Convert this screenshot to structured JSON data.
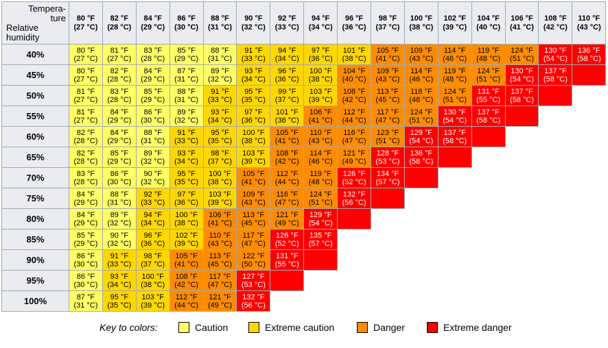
{
  "header": {
    "corner_top": "Tempera-\nture",
    "corner_bottom": "Relative\nhumidity",
    "temps": [
      [
        "80 °F",
        "(27 °C)"
      ],
      [
        "82 °F",
        "(28 °C)"
      ],
      [
        "84 °F",
        "(29 °C)"
      ],
      [
        "86 °F",
        "(30 °C)"
      ],
      [
        "88 °F",
        "(31 °C)"
      ],
      [
        "90 °F",
        "(32 °C)"
      ],
      [
        "92 °F",
        "(33 °C)"
      ],
      [
        "94 °F",
        "(34 °C)"
      ],
      [
        "96 °F",
        "(36 °C)"
      ],
      [
        "98 °F",
        "(37 °C)"
      ],
      [
        "100 °F",
        "(38 °C)"
      ],
      [
        "102 °F",
        "(39 °C)"
      ],
      [
        "104 °F",
        "(40 °C)"
      ],
      [
        "106 °F",
        "(41 °C)"
      ],
      [
        "108 °F",
        "(42 °C)"
      ],
      [
        "110 °F",
        "(43 °C)"
      ]
    ]
  },
  "colors": {
    "caution": "#ffff66",
    "extreme_caution": "#ffd700",
    "danger": "#ff8c00",
    "extreme_danger": "#ff0000",
    "header_bg": "#eaecf0",
    "border": "#a2a9b1"
  },
  "rows": [
    {
      "humidity": "40%",
      "cells": [
        [
          "80 °F",
          "(27 °C)",
          "c"
        ],
        [
          "81 °F",
          "(27 °C)",
          "c"
        ],
        [
          "83 °F",
          "(28 °C)",
          "c"
        ],
        [
          "85 °F",
          "(29 °C)",
          "c"
        ],
        [
          "88 °F",
          "(31 °C)",
          "c"
        ],
        [
          "91 °F",
          "(33 °C)",
          "e"
        ],
        [
          "94 °F",
          "(34 °C)",
          "e"
        ],
        [
          "97 °F",
          "(36 °C)",
          "e"
        ],
        [
          "101 °F",
          "(38 °C)",
          "e"
        ],
        [
          "105 °F",
          "(41 °C)",
          "d"
        ],
        [
          "109 °F",
          "(43 °C)",
          "d"
        ],
        [
          "114 °F",
          "(46 °C)",
          "d"
        ],
        [
          "119 °F",
          "(48 °C)",
          "d"
        ],
        [
          "124 °F",
          "(51 °C)",
          "d"
        ],
        [
          "130 °F",
          "(54 °C)",
          "x"
        ],
        [
          "136 °F",
          "(58 °C)",
          "x"
        ]
      ]
    },
    {
      "humidity": "45%",
      "cells": [
        [
          "80 °F",
          "(27 °C)",
          "c"
        ],
        [
          "82 °F",
          "(28 °C)",
          "c"
        ],
        [
          "84 °F",
          "(29 °C)",
          "c"
        ],
        [
          "87 °F",
          "(31 °C)",
          "c"
        ],
        [
          "89 °F",
          "(32 °C)",
          "c"
        ],
        [
          "93 °F",
          "(34 °C)",
          "e"
        ],
        [
          "96 °F",
          "(36 °C)",
          "e"
        ],
        [
          "100 °F",
          "(38 °C)",
          "e"
        ],
        [
          "104 °F",
          "(40 °C)",
          "d"
        ],
        [
          "109 °F",
          "(43 °C)",
          "d"
        ],
        [
          "114 °F",
          "(46 °C)",
          "d"
        ],
        [
          "119 °F",
          "(48 °C)",
          "d"
        ],
        [
          "124 °F",
          "(51 °C)",
          "d"
        ],
        [
          "130 °F",
          "(54 °C)",
          "x"
        ],
        [
          "137 °F",
          "(58 °C)",
          "x"
        ],
        [
          "",
          "",
          "x"
        ]
      ]
    },
    {
      "humidity": "50%",
      "cells": [
        [
          "81 °F",
          "(27 °C)",
          "c"
        ],
        [
          "83 °F",
          "(28 °C)",
          "c"
        ],
        [
          "85 °F",
          "(29 °C)",
          "c"
        ],
        [
          "88 °F",
          "(31 °C)",
          "c"
        ],
        [
          "91 °F",
          "(33 °C)",
          "e"
        ],
        [
          "95 °F",
          "(35 °C)",
          "e"
        ],
        [
          "99 °F",
          "(37 °C)",
          "e"
        ],
        [
          "103 °F",
          "(39 °C)",
          "e"
        ],
        [
          "108 °F",
          "(42 °C)",
          "d"
        ],
        [
          "113 °F",
          "(45 °C)",
          "d"
        ],
        [
          "118 °F",
          "(48 °C)",
          "d"
        ],
        [
          "124 °F",
          "(51 °C)",
          "d"
        ],
        [
          "131 °F",
          "(55 °C)",
          "x"
        ],
        [
          "137 °F",
          "(58 °C)",
          "x"
        ],
        [
          "",
          "",
          "x"
        ],
        [
          "",
          "",
          ""
        ]
      ]
    },
    {
      "humidity": "55%",
      "cells": [
        [
          "81 °F",
          "(27 °C)",
          "c"
        ],
        [
          "84 °F",
          "(29 °C)",
          "c"
        ],
        [
          "86 °F",
          "(30 °C)",
          "c"
        ],
        [
          "89 °F",
          "(32 °C)",
          "c"
        ],
        [
          "93 °F",
          "(34 °C)",
          "e"
        ],
        [
          "97 °F",
          "(36 °C)",
          "e"
        ],
        [
          "101 °F",
          "(38 °C)",
          "e"
        ],
        [
          "106 °F",
          "(41 °C)",
          "d"
        ],
        [
          "112 °F",
          "(44 °C)",
          "d"
        ],
        [
          "117 °F",
          "(47 °C)",
          "d"
        ],
        [
          "124 °F",
          "(51 °C)",
          "d"
        ],
        [
          "130 °F",
          "(54 °C)",
          "x"
        ],
        [
          "137 °F",
          "(58 °C)",
          "x"
        ],
        [
          "",
          "",
          "x"
        ],
        [
          "",
          "",
          ""
        ],
        [
          "",
          "",
          ""
        ]
      ]
    },
    {
      "humidity": "60%",
      "cells": [
        [
          "82 °F",
          "(28 °C)",
          "c"
        ],
        [
          "84 °F",
          "(29 °C)",
          "c"
        ],
        [
          "88 °F",
          "(31 °C)",
          "c"
        ],
        [
          "91 °F",
          "(33 °C)",
          "e"
        ],
        [
          "95 °F",
          "(35 °C)",
          "e"
        ],
        [
          "100 °F",
          "(38 °C)",
          "e"
        ],
        [
          "105 °F",
          "(41 °C)",
          "d"
        ],
        [
          "110 °F",
          "(43 °C)",
          "d"
        ],
        [
          "116 °F",
          "(47 °C)",
          "d"
        ],
        [
          "123 °F",
          "(51 °C)",
          "d"
        ],
        [
          "129 °F",
          "(54 °C)",
          "x"
        ],
        [
          "137 °F",
          "(58 °C)",
          "x"
        ],
        [
          "",
          "",
          "x"
        ],
        [
          "",
          "",
          ""
        ],
        [
          "",
          "",
          ""
        ],
        [
          "",
          "",
          ""
        ]
      ]
    },
    {
      "humidity": "65%",
      "cells": [
        [
          "82 °F",
          "(28 °C)",
          "c"
        ],
        [
          "85 °F",
          "(29 °C)",
          "c"
        ],
        [
          "89 °F",
          "(32 °C)",
          "c"
        ],
        [
          "93 °F",
          "(34 °C)",
          "e"
        ],
        [
          "98 °F",
          "(37 °C)",
          "e"
        ],
        [
          "103 °F",
          "(39 °C)",
          "e"
        ],
        [
          "108 °F",
          "(42 °C)",
          "d"
        ],
        [
          "114 °F",
          "(46 °C)",
          "d"
        ],
        [
          "121 °F",
          "(49 °C)",
          "d"
        ],
        [
          "128 °F",
          "(53 °C)",
          "x"
        ],
        [
          "136 °F",
          "(58 °C)",
          "x"
        ],
        [
          "",
          "",
          "x"
        ],
        [
          "",
          "",
          ""
        ],
        [
          "",
          "",
          ""
        ],
        [
          "",
          "",
          ""
        ],
        [
          "",
          "",
          ""
        ]
      ]
    },
    {
      "humidity": "70%",
      "cells": [
        [
          "83 °F",
          "(28 °C)",
          "c"
        ],
        [
          "86 °F",
          "(30 °C)",
          "c"
        ],
        [
          "90 °F",
          "(32 °C)",
          "c"
        ],
        [
          "95 °F",
          "(35 °C)",
          "e"
        ],
        [
          "100 °F",
          "(38 °C)",
          "e"
        ],
        [
          "105 °F",
          "(41 °C)",
          "d"
        ],
        [
          "112 °F",
          "(44 °C)",
          "d"
        ],
        [
          "119 °F",
          "(48 °C)",
          "d"
        ],
        [
          "126 °F",
          "(52 °C)",
          "x"
        ],
        [
          "134 °F",
          "(57 °C)",
          "x"
        ],
        [
          "",
          "",
          "x"
        ],
        [
          "",
          "",
          ""
        ],
        [
          "",
          "",
          ""
        ],
        [
          "",
          "",
          ""
        ],
        [
          "",
          "",
          ""
        ],
        [
          "",
          "",
          ""
        ]
      ]
    },
    {
      "humidity": "75%",
      "cells": [
        [
          "84 °F",
          "(29 °C)",
          "c"
        ],
        [
          "88 °F",
          "(31 °C)",
          "c"
        ],
        [
          "92 °F",
          "(33 °C)",
          "e"
        ],
        [
          "97 °F",
          "(36 °C)",
          "e"
        ],
        [
          "103 °F",
          "(39 °C)",
          "e"
        ],
        [
          "109 °F",
          "(43 °C)",
          "d"
        ],
        [
          "116 °F",
          "(47 °C)",
          "d"
        ],
        [
          "124 °F",
          "(51 °C)",
          "d"
        ],
        [
          "132 °F",
          "(56 °C)",
          "x"
        ],
        [
          "",
          "",
          "x"
        ],
        [
          "",
          "",
          ""
        ],
        [
          "",
          "",
          ""
        ],
        [
          "",
          "",
          ""
        ],
        [
          "",
          "",
          ""
        ],
        [
          "",
          "",
          ""
        ],
        [
          "",
          "",
          ""
        ]
      ]
    },
    {
      "humidity": "80%",
      "cells": [
        [
          "84 °F",
          "(29 °C)",
          "c"
        ],
        [
          "89 °F",
          "(32 °C)",
          "c"
        ],
        [
          "94 °F",
          "(34 °C)",
          "e"
        ],
        [
          "100 °F",
          "(38 °C)",
          "e"
        ],
        [
          "106 °F",
          "(41 °C)",
          "d"
        ],
        [
          "113 °F",
          "(45 °C)",
          "d"
        ],
        [
          "121 °F",
          "(49 °C)",
          "d"
        ],
        [
          "129 °F",
          "(54 °C)",
          "x"
        ],
        [
          "",
          "",
          "x"
        ],
        [
          "",
          "",
          ""
        ],
        [
          "",
          "",
          ""
        ],
        [
          "",
          "",
          ""
        ],
        [
          "",
          "",
          ""
        ],
        [
          "",
          "",
          ""
        ],
        [
          "",
          "",
          ""
        ],
        [
          "",
          "",
          ""
        ]
      ]
    },
    {
      "humidity": "85%",
      "cells": [
        [
          "85 °F",
          "(29 °C)",
          "c"
        ],
        [
          "90 °F",
          "(32 °C)",
          "c"
        ],
        [
          "96 °F",
          "(36 °C)",
          "e"
        ],
        [
          "102 °F",
          "(39 °C)",
          "e"
        ],
        [
          "110 °F",
          "(43 °C)",
          "d"
        ],
        [
          "117 °F",
          "(47 °C)",
          "d"
        ],
        [
          "126 °F",
          "(52 °C)",
          "x"
        ],
        [
          "135 °F",
          "(57 °C)",
          "x"
        ],
        [
          "",
          "",
          ""
        ],
        [
          "",
          "",
          ""
        ],
        [
          "",
          "",
          ""
        ],
        [
          "",
          "",
          ""
        ],
        [
          "",
          "",
          ""
        ],
        [
          "",
          "",
          ""
        ],
        [
          "",
          "",
          ""
        ],
        [
          "",
          "",
          ""
        ]
      ]
    },
    {
      "humidity": "90%",
      "cells": [
        [
          "86 °F",
          "(30 °C)",
          "c"
        ],
        [
          "91 °F",
          "(33 °C)",
          "e"
        ],
        [
          "98 °F",
          "(37 °C)",
          "e"
        ],
        [
          "105 °F",
          "(41 °C)",
          "d"
        ],
        [
          "113 °F",
          "(45 °C)",
          "d"
        ],
        [
          "122 °F",
          "(50 °C)",
          "d"
        ],
        [
          "131 °F",
          "(55 °C)",
          "x"
        ],
        [
          "",
          "",
          "x"
        ],
        [
          "",
          "",
          ""
        ],
        [
          "",
          "",
          ""
        ],
        [
          "",
          "",
          ""
        ],
        [
          "",
          "",
          ""
        ],
        [
          "",
          "",
          ""
        ],
        [
          "",
          "",
          ""
        ],
        [
          "",
          "",
          ""
        ],
        [
          "",
          "",
          ""
        ]
      ]
    },
    {
      "humidity": "95%",
      "cells": [
        [
          "86 °F",
          "(30 °C)",
          "c"
        ],
        [
          "93 °F",
          "(34 °C)",
          "e"
        ],
        [
          "100 °F",
          "(38 °C)",
          "e"
        ],
        [
          "108 °F",
          "(42 °C)",
          "d"
        ],
        [
          "117 °F",
          "(47 °C)",
          "d"
        ],
        [
          "127 °F",
          "(53 °C)",
          "x"
        ],
        [
          "",
          "",
          "x"
        ],
        [
          "",
          "",
          ""
        ],
        [
          "",
          "",
          ""
        ],
        [
          "",
          "",
          ""
        ],
        [
          "",
          "",
          ""
        ],
        [
          "",
          "",
          ""
        ],
        [
          "",
          "",
          ""
        ],
        [
          "",
          "",
          ""
        ],
        [
          "",
          "",
          ""
        ],
        [
          "",
          "",
          ""
        ]
      ]
    },
    {
      "humidity": "100%",
      "cells": [
        [
          "87 °F",
          "(31 °C)",
          "c"
        ],
        [
          "95 °F",
          "(35 °C)",
          "e"
        ],
        [
          "103 °F",
          "(39 °C)",
          "e"
        ],
        [
          "112 °F",
          "(44 °C)",
          "d"
        ],
        [
          "121 °F",
          "(49 °C)",
          "d"
        ],
        [
          "132 °F",
          "(56 °C)",
          "x"
        ],
        [
          "",
          "",
          ""
        ],
        [
          "",
          "",
          ""
        ],
        [
          "",
          "",
          ""
        ],
        [
          "",
          "",
          ""
        ],
        [
          "",
          "",
          ""
        ],
        [
          "",
          "",
          ""
        ],
        [
          "",
          "",
          ""
        ],
        [
          "",
          "",
          ""
        ],
        [
          "",
          "",
          ""
        ],
        [
          "",
          "",
          ""
        ]
      ]
    }
  ],
  "legend": {
    "title": "Key to colors:",
    "items": [
      {
        "label": "Caution",
        "level": "c"
      },
      {
        "label": "Extreme caution",
        "level": "e"
      },
      {
        "label": "Danger",
        "level": "d"
      },
      {
        "label": "Extreme danger",
        "level": "x"
      }
    ]
  }
}
